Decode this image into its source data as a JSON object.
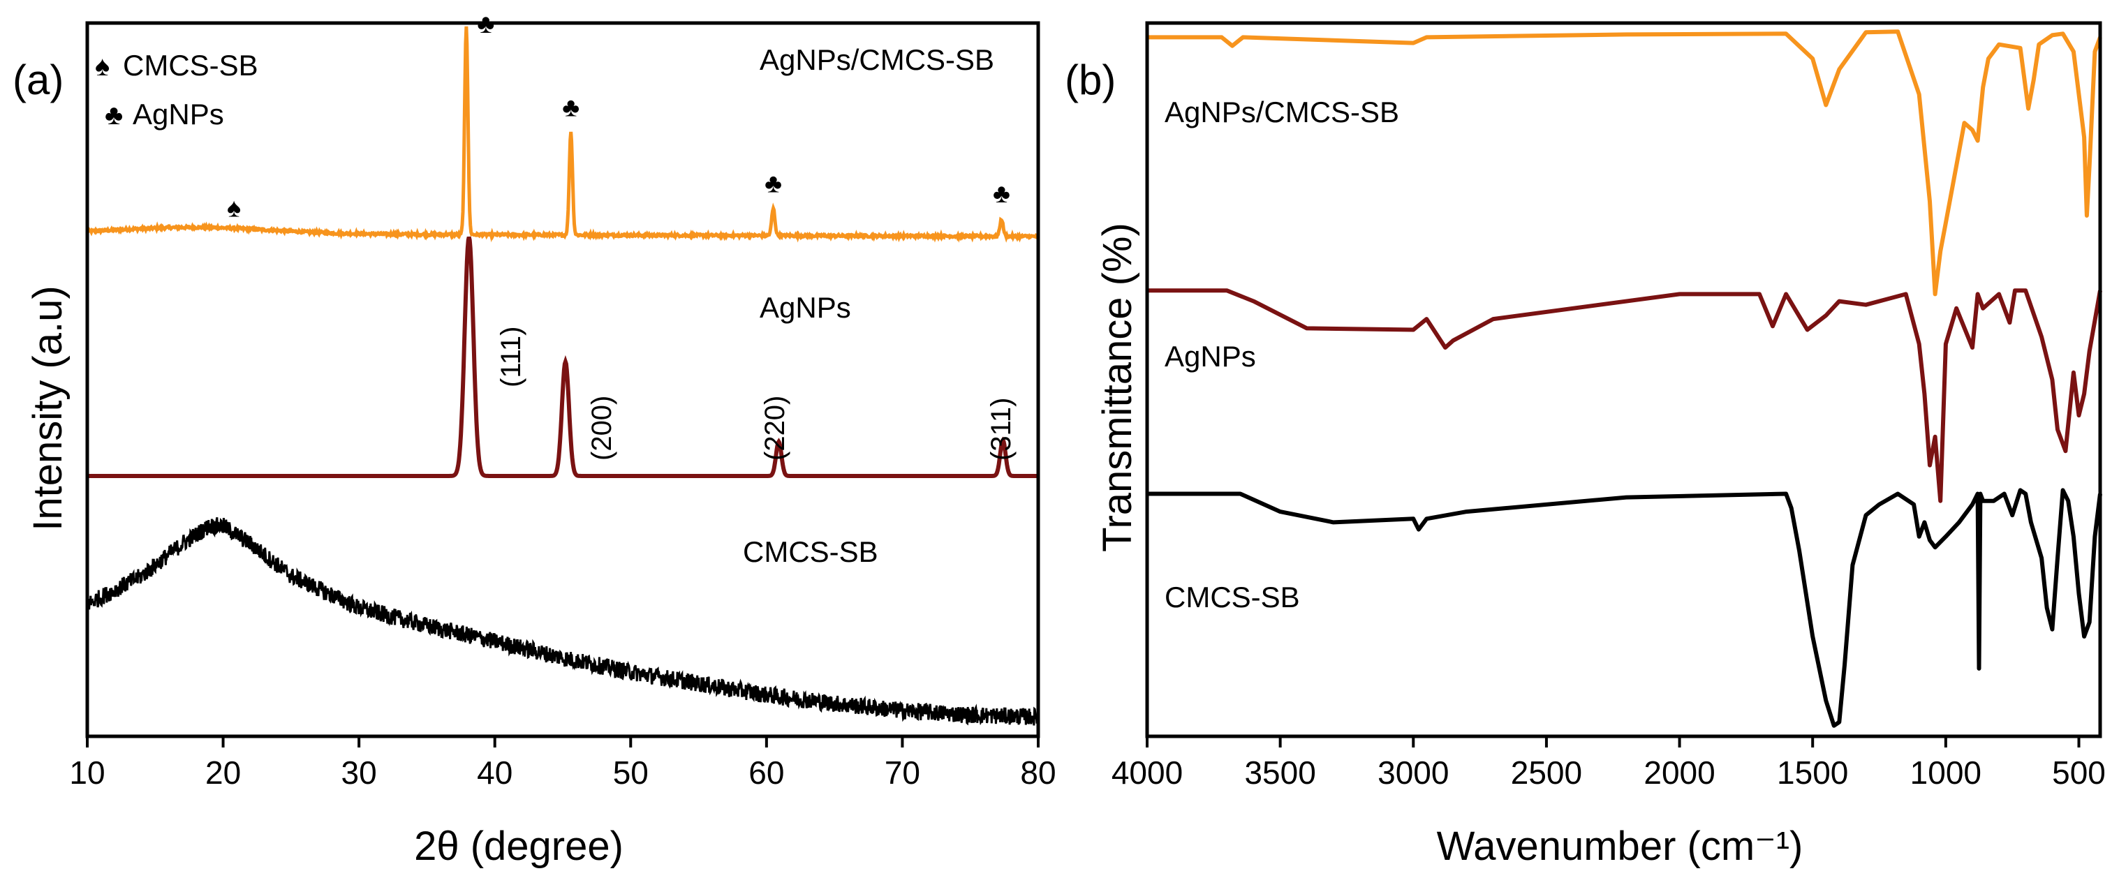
{
  "chart_data": [
    {
      "panel": "(a)",
      "type": "line",
      "xlabel": "2θ (degree)",
      "ylabel": "Intensity (a.u)",
      "xlim": [
        10,
        80
      ],
      "ylim": [
        0,
        100
      ],
      "xticks": [
        10,
        20,
        30,
        40,
        50,
        60,
        70,
        80
      ],
      "grid": false,
      "legend": {
        "placement": "top-left",
        "entries": [
          {
            "symbol": "♠",
            "label": "CMCS-SB",
            "color": "#1f2fd6"
          },
          {
            "symbol": "♣",
            "label": "AgNPs",
            "color": "#e3262b"
          }
        ]
      },
      "series": [
        {
          "name": "AgNPs/CMCS-SB",
          "color": "#f7941d",
          "baseline": 70.5,
          "peaks": [
            {
              "x": 37.9,
              "height": 29.3,
              "marker": "♣"
            },
            {
              "x": 45.6,
              "height": 14.5,
              "marker": "♣"
            },
            {
              "x": 60.5,
              "height": 3.8,
              "marker": "♣"
            },
            {
              "x": 77.3,
              "height": 2.4,
              "marker": "♣"
            }
          ],
          "markers": [
            {
              "x": 20.8,
              "symbol": "♠",
              "color": "#1f2fd6"
            }
          ]
        },
        {
          "name": "AgNPs",
          "color": "#7a1212",
          "baseline": 36.5,
          "peaks": [
            {
              "x": 38.1,
              "height": 33.5,
              "hkl": "(111)"
            },
            {
              "x": 45.2,
              "height": 16.0,
              "hkl": "(200)"
            },
            {
              "x": 60.9,
              "height": 4.8,
              "hkl": "(220)"
            },
            {
              "x": 77.4,
              "height": 5.0,
              "hkl": "(311)"
            }
          ]
        },
        {
          "name": "CMCS-SB",
          "color": "#000000",
          "x": [
            10,
            14,
            17,
            19,
            20,
            22,
            25,
            30,
            35,
            40,
            45,
            50,
            55,
            60,
            65,
            70,
            75,
            80
          ],
          "values": [
            18.5,
            22.5,
            27.0,
            29.5,
            29.5,
            27.0,
            22.5,
            18.0,
            15.5,
            13.3,
            11.0,
            9.0,
            7.4,
            5.8,
            4.6,
            3.6,
            3.0,
            2.7
          ]
        }
      ]
    },
    {
      "panel": "(b)",
      "type": "line",
      "xlabel": "Wavenumber (cm⁻¹)",
      "ylabel": "Transmittance (%)",
      "xlim": [
        4000,
        420
      ],
      "ylim": [
        0,
        100
      ],
      "xticks": [
        4000,
        3500,
        3000,
        2500,
        2000,
        1500,
        1000,
        500
      ],
      "grid": false,
      "series": [
        {
          "name": "AgNPs/CMCS-SB",
          "color": "#f7941d",
          "x": [
            4000,
            3720,
            3680,
            3640,
            3000,
            2950,
            2200,
            1600,
            1500,
            1450,
            1400,
            1300,
            1180,
            1100,
            1060,
            1040,
            1020,
            1000,
            960,
            930,
            900,
            880,
            860,
            840,
            800,
            720,
            690,
            670,
            650,
            600,
            560,
            520,
            480,
            470,
            460,
            440,
            420
          ],
          "values": [
            98.0,
            98.0,
            96.8,
            98.0,
            97.2,
            98.0,
            98.4,
            98.5,
            95.0,
            88.5,
            93.5,
            98.7,
            98.8,
            90.0,
            75.0,
            62.0,
            68.0,
            72.0,
            80.0,
            86.0,
            85.0,
            83.5,
            91.0,
            95.0,
            97.0,
            96.5,
            88.0,
            92.0,
            97.0,
            98.3,
            98.5,
            96.0,
            84.0,
            73.0,
            80.0,
            96.0,
            98.0
          ]
        },
        {
          "name": "AgNPs",
          "color": "#7a1212",
          "x": [
            4000,
            3700,
            3600,
            3400,
            3000,
            2950,
            2880,
            2850,
            2700,
            2000,
            1700,
            1650,
            1600,
            1520,
            1450,
            1400,
            1300,
            1200,
            1150,
            1100,
            1080,
            1060,
            1040,
            1020,
            1000,
            960,
            900,
            880,
            860,
            800,
            760,
            740,
            700,
            640,
            600,
            580,
            550,
            520,
            500,
            480,
            460,
            420
          ],
          "values": [
            62.5,
            62.5,
            61.0,
            57.2,
            57.0,
            58.5,
            54.5,
            55.5,
            58.5,
            62.0,
            62.0,
            57.5,
            62.0,
            57.0,
            59.0,
            61.0,
            60.5,
            61.5,
            62.0,
            55.0,
            48.0,
            38.0,
            42.0,
            33.0,
            55.0,
            60.0,
            54.5,
            62.0,
            60.0,
            62.0,
            58.0,
            62.5,
            62.5,
            56.0,
            50.0,
            43.0,
            40.0,
            51.0,
            45.0,
            48.0,
            54.0,
            62.5
          ]
        },
        {
          "name": "CMCS-SB",
          "color": "#000000",
          "x": [
            4000,
            3650,
            3500,
            3300,
            3000,
            2980,
            2950,
            2800,
            2200,
            1600,
            1580,
            1550,
            1500,
            1450,
            1420,
            1400,
            1380,
            1350,
            1300,
            1250,
            1180,
            1120,
            1100,
            1080,
            1060,
            1040,
            1000,
            950,
            900,
            880,
            875,
            870,
            860,
            820,
            780,
            750,
            720,
            700,
            680,
            640,
            620,
            600,
            580,
            560,
            540,
            520,
            500,
            480,
            460,
            440,
            420
          ],
          "values": [
            34.0,
            34.0,
            31.5,
            30.0,
            30.5,
            29.0,
            30.5,
            31.5,
            33.5,
            34.0,
            32.0,
            26.0,
            14.0,
            5.0,
            1.5,
            2.0,
            10.0,
            24.0,
            31.0,
            32.5,
            34.0,
            32.5,
            28.0,
            30.0,
            27.5,
            26.5,
            28.0,
            30.0,
            32.5,
            34.0,
            9.5,
            34.0,
            33.0,
            33.0,
            34.0,
            31.0,
            34.5,
            34.0,
            30.0,
            25.0,
            18.0,
            15.0,
            25.0,
            34.5,
            33.0,
            28.0,
            20.0,
            14.0,
            16.0,
            28.0,
            34.0
          ]
        }
      ]
    }
  ]
}
